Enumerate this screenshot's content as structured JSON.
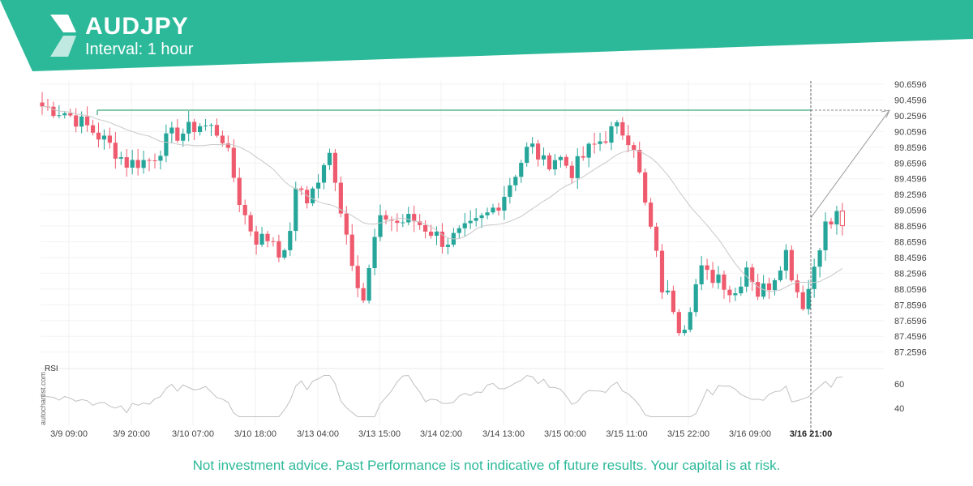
{
  "header": {
    "symbol": "AUDJPY",
    "interval": "Interval: 1 hour"
  },
  "colors": {
    "brand": "#2cb99a",
    "up": "#26a69a",
    "down": "#ef5b6e",
    "level_line": "#5cb88f"
  },
  "footer": {
    "disclaimer": "Not investment advice. Past Performance is not indicative of future results. Your capital is at risk."
  },
  "watermark": "autochartist.com",
  "chart_data": {
    "type": "candlestick",
    "ylim": [
      87.0596,
      90.7596
    ],
    "y_ticks": [
      "90.6596",
      "90.4596",
      "90.2596",
      "90.0596",
      "89.8596",
      "89.6596",
      "89.4596",
      "89.2596",
      "89.0596",
      "88.8596",
      "88.6596",
      "88.4596",
      "88.2596",
      "88.0596",
      "87.8596",
      "87.6596",
      "87.4596",
      "87.2596"
    ],
    "x_ticks": [
      "3/9 09:00",
      "3/9 20:00",
      "3/10 07:00",
      "3/10 18:00",
      "3/13 04:00",
      "3/13 15:00",
      "3/14 02:00",
      "3/14 13:00",
      "3/15 00:00",
      "3/15 11:00",
      "3/15 22:00",
      "3/16 09:00",
      "3/16 21:00"
    ],
    "candle_count": 143,
    "anchors": [
      [
        0,
        90.38
      ],
      [
        5,
        90.3
      ],
      [
        10,
        90.1
      ],
      [
        14,
        89.9
      ],
      [
        18,
        89.65
      ],
      [
        23,
        89.7
      ],
      [
        27,
        90.0
      ],
      [
        30,
        90.05
      ],
      [
        33,
        90.15
      ],
      [
        36,
        90.1
      ],
      [
        38,
        90.0
      ],
      [
        40,
        89.6
      ],
      [
        42,
        89.1
      ],
      [
        45,
        88.7
      ],
      [
        49,
        88.7
      ],
      [
        51,
        88.4
      ],
      [
        54,
        89.4
      ],
      [
        56,
        89.2
      ],
      [
        59,
        89.5
      ],
      [
        61,
        89.8
      ],
      [
        63,
        89.1
      ],
      [
        66,
        88.3
      ],
      [
        68,
        87.9
      ],
      [
        70,
        88.65
      ],
      [
        72,
        89.0
      ],
      [
        75,
        88.9
      ],
      [
        78,
        88.95
      ],
      [
        82,
        88.8
      ],
      [
        85,
        88.65
      ],
      [
        88,
        88.75
      ],
      [
        91,
        88.85
      ],
      [
        94,
        89.0
      ],
      [
        97,
        89.2
      ],
      [
        100,
        89.55
      ],
      [
        103,
        89.9
      ],
      [
        106,
        89.65
      ],
      [
        109,
        89.75
      ],
      [
        112,
        89.55
      ],
      [
        115,
        89.8
      ],
      [
        118,
        89.95
      ],
      [
        121,
        90.1
      ],
      [
        123,
        90.05
      ],
      [
        125,
        89.9
      ],
      [
        127,
        89.2
      ],
      [
        129,
        88.7
      ],
      [
        131,
        88.05
      ],
      [
        133,
        87.9
      ],
      [
        135,
        87.5
      ],
      [
        137,
        87.9
      ],
      [
        139,
        88.3
      ]
    ],
    "anchors_tail": [
      [
        141,
        88.2
      ],
      [
        143,
        88.25
      ],
      [
        146,
        87.95
      ],
      [
        149,
        88.4
      ],
      [
        151,
        88.0
      ],
      [
        154,
        88.15
      ],
      [
        157,
        88.55
      ],
      [
        159,
        88.1
      ],
      [
        161,
        87.85
      ],
      [
        163,
        88.35
      ],
      [
        165,
        88.85
      ],
      [
        167,
        88.9
      ],
      [
        168,
        89.02
      ],
      [
        169,
        88.9
      ]
    ],
    "resistance_level": 90.33,
    "projection_target": 90.33,
    "rsi": {
      "label": "RSI",
      "y_ticks": [
        "60",
        "40"
      ],
      "ylim": [
        30,
        70
      ]
    }
  }
}
